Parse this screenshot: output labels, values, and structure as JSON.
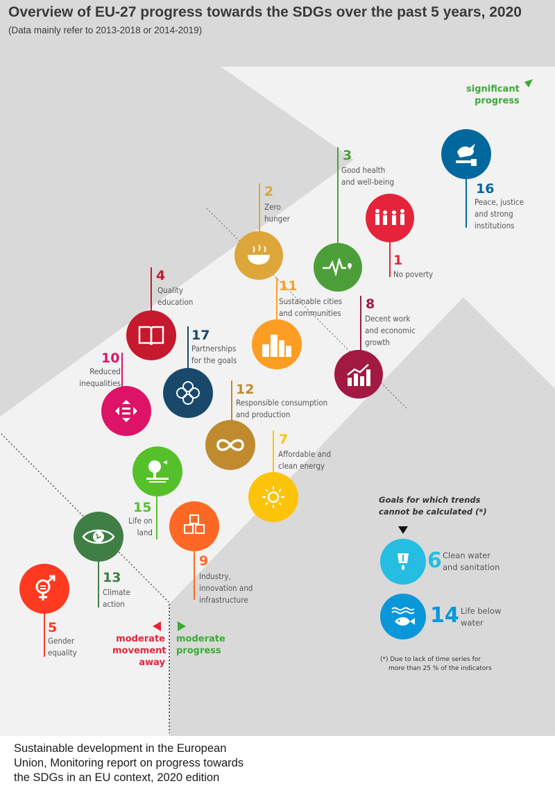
{
  "title": "Overview of EU-27 progress towards the SDGs over the past 5 years, 2020",
  "subtitle": "(Data mainly refer to 2013-2018 or 2014-2019)",
  "markers": {
    "significant_line1": "significant",
    "significant_line2": "progress",
    "moderate_progress_line1": "moderate",
    "moderate_progress_line2": "progress",
    "moderate_away_line1": "moderate",
    "moderate_away_line2": "movement",
    "moderate_away_line3": "away"
  },
  "colors": {
    "goal1": "#e5243b",
    "goal2": "#dda63a",
    "goal3": "#4c9f38",
    "goal4": "#c5192d",
    "goal5": "#ff3a21",
    "goal6": "#26bde2",
    "goal7": "#fcc30b",
    "goal8": "#a21942",
    "goal9": "#fd6925",
    "goal10": "#dd1367",
    "goal11": "#fd9d24",
    "goal12": "#bf8b2e",
    "goal13": "#3f7e44",
    "goal14": "#0a97d9",
    "goal15": "#56c02b",
    "goal16": "#00689d",
    "goal17": "#19486a",
    "arrow": "#f2f2f2",
    "background": "#d9d9d9",
    "significant": "#3aaa35",
    "moderate_progress": "#3aaa35",
    "moderate_away": "#e5243b"
  },
  "goals": {
    "g1": {
      "number": "1",
      "line1": "No poverty",
      "line2": "",
      "line3": "",
      "icon": "family-icon"
    },
    "g2": {
      "number": "2",
      "line1": "Zero",
      "line2": "hunger",
      "line3": "",
      "icon": "bowl-icon"
    },
    "g3": {
      "number": "3",
      "line1": "Good health",
      "line2": "and well-being",
      "line3": "",
      "icon": "heartbeat-icon"
    },
    "g4": {
      "number": "4",
      "line1": "Quality",
      "line2": "education",
      "line3": "",
      "icon": "book-icon"
    },
    "g5": {
      "number": "5",
      "line1": "Gender",
      "line2": "equality",
      "line3": "",
      "icon": "gender-icon"
    },
    "g7": {
      "number": "7",
      "line1": "Affordable and",
      "line2": "clean energy",
      "line3": "",
      "icon": "sun-icon"
    },
    "g8": {
      "number": "8",
      "line1": "Decent work",
      "line2": "and economic",
      "line3": "growth",
      "icon": "growth-chart-icon"
    },
    "g9": {
      "number": "9",
      "line1": "Industry,",
      "line2": "innovation and",
      "line3": "infrastructure",
      "icon": "cubes-icon"
    },
    "g10": {
      "number": "10",
      "line1": "Reduced",
      "line2": "inequalities",
      "line3": "",
      "icon": "equality-icon"
    },
    "g11": {
      "number": "11",
      "line1": "Sustainable cities",
      "line2": "and communities",
      "line3": "",
      "icon": "buildings-icon"
    },
    "g12": {
      "number": "12",
      "line1": "Responsible consumption",
      "line2": "and production",
      "line3": "",
      "icon": "infinity-icon"
    },
    "g13": {
      "number": "13",
      "line1": "Climate",
      "line2": "action",
      "line3": "",
      "icon": "eye-globe-icon"
    },
    "g15": {
      "number": "15",
      "line1": "Life on",
      "line2": "land",
      "line3": "",
      "icon": "tree-icon"
    },
    "g16": {
      "number": "16",
      "line1": "Peace, justice",
      "line2": "and strong",
      "line3": "institutions",
      "icon": "dove-icon"
    },
    "g17": {
      "number": "17",
      "line1": "Partnerships",
      "line2": "for the goals",
      "line3": "",
      "icon": "flower-icon"
    }
  },
  "not_calculated": {
    "heading_line1": "Goals for which trends",
    "heading_line2": "cannot be calculated  (*)",
    "g6": {
      "number": "6",
      "line1": "Clean water",
      "line2": "and sanitation",
      "icon": "water-tap-icon"
    },
    "g14": {
      "number": "14",
      "line1": "Life below",
      "line2": "water",
      "icon": "fish-icon"
    },
    "footnote_line1": "(*)  Due to lack of time series for",
    "footnote_line2": "more than 25 % of the indicators"
  },
  "footer": {
    "line1": "Sustainable development in the European",
    "line2": "Union, Monitoring report on progress towards",
    "line3": "the SDGs in an EU context, 2020 edition"
  }
}
